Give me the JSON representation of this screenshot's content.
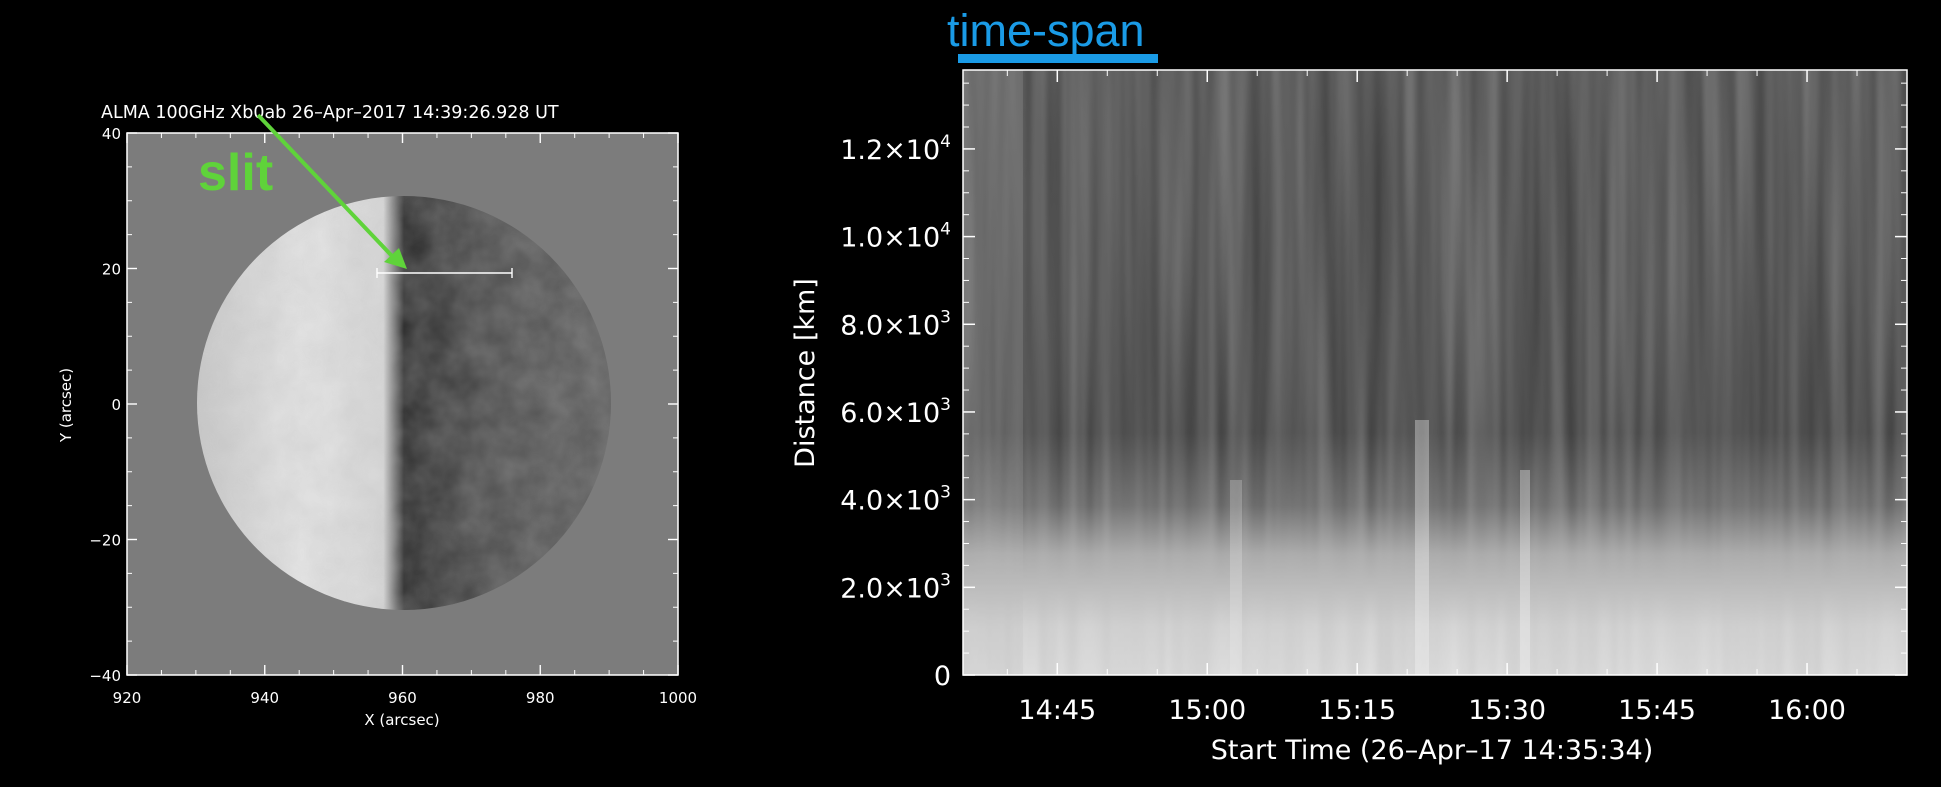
{
  "left_panel": {
    "title": "ALMA 100GHz Xb0ab 26–Apr–2017 14:39:26.928 UT",
    "annotation": "slit",
    "xlabel": "X (arcsec)",
    "ylabel": "Y (arcsec)",
    "xticks": [
      "920",
      "940",
      "960",
      "980",
      "1000"
    ],
    "yticks": [
      "40",
      "20",
      "0",
      "−20",
      "−40"
    ],
    "accent_color": "#5fd33a"
  },
  "right_panel": {
    "annotation": "time-span",
    "annotation_color": "#1a9be6",
    "xlabel": "Start Time (26–Apr–17 14:35:34)",
    "ylabel": "Distance [km]",
    "xticks": [
      "14:45",
      "15:00",
      "15:15",
      "15:30",
      "15:45",
      "16:00"
    ],
    "ytick_mantissa": [
      "1.2×10",
      "1.0×10",
      "8.0×10",
      "6.0×10",
      "4.0×10",
      "2.0×10",
      "0"
    ],
    "ytick_exponent": [
      "4",
      "4",
      "3",
      "3",
      "3",
      "3",
      ""
    ]
  },
  "chart_data": [
    {
      "type": "heatmap",
      "title": "ALMA 100GHz Xb0ab 26–Apr–2017 14:39:26.928 UT",
      "xlabel": "X (arcsec)",
      "ylabel": "Y (arcsec)",
      "xlim": [
        920,
        1000
      ],
      "ylim": [
        -40,
        40
      ],
      "disk_center": [
        960,
        0
      ],
      "disk_radius_arcsec": 30,
      "slit": {
        "x": [
          955,
          975
        ],
        "y": [
          19,
          19
        ]
      },
      "annotation": "slit"
    },
    {
      "type": "heatmap",
      "xlabel": "Start Time (26–Apr–17 14:35:34)",
      "ylabel": "Distance [km]",
      "xlim": [
        "14:35:34",
        "16:10"
      ],
      "ylim": [
        0,
        13800
      ],
      "yticks": [
        0,
        2000,
        4000,
        6000,
        8000,
        10000,
        12000
      ],
      "xticks": [
        "14:45",
        "15:00",
        "15:15",
        "15:30",
        "15:45",
        "16:00"
      ],
      "annotation": "time-span"
    }
  ]
}
